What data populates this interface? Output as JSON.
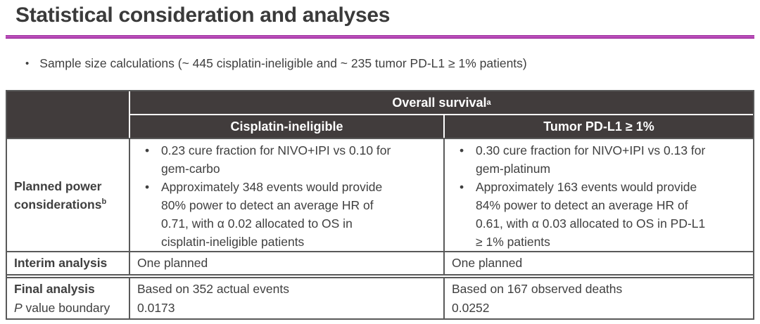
{
  "title": "Statistical consideration and analyses",
  "intro_bullet": "Sample size calculations (~ 445 cisplatin-ineligible and ~ 235 tumor PD-L1 ≥ 1% patients)",
  "colors": {
    "accent_rule": "#a02ca0",
    "header_bg": "#413c3c",
    "border": "#595959",
    "body_text": "#3f3f3f"
  },
  "table": {
    "overall_header": "Overall survival",
    "overall_header_sup": "a",
    "subheaders": [
      "Cisplatin-ineligible",
      "Tumor PD-L1 ≥ 1%"
    ],
    "planned_power": {
      "label": "Planned power\nconsiderations",
      "label_sup": "b",
      "cisplatin_bullets": [
        "0.23 cure fraction for NIVO+IPI vs 0.10 for\ngem-carbo",
        "Approximately 348 events would provide\n80% power to detect an average HR of\n0.71, with α 0.02 allocated to OS in\ncisplatin-ineligible patients"
      ],
      "pdl1_bullets": [
        "0.30 cure fraction for NIVO+IPI vs 0.13 for\ngem-platinum",
        "Approximately 163 events would provide\n84% power to detect an average HR of\n0.61, with α 0.03 allocated to OS in PD-L1\n≥ 1% patients"
      ]
    },
    "interim": {
      "label": "Interim analysis",
      "cisplatin": "One planned",
      "pdl1": "One planned"
    },
    "final": {
      "label_line1": "Final analysis",
      "label_line2_italic": "P",
      "label_line2_rest": " value boundary",
      "cisplatin_line1": "Based on 352 actual events",
      "cisplatin_line2": "0.0173",
      "pdl1_line1": "Based on 167 observed deaths",
      "pdl1_line2": "0.0252"
    }
  }
}
